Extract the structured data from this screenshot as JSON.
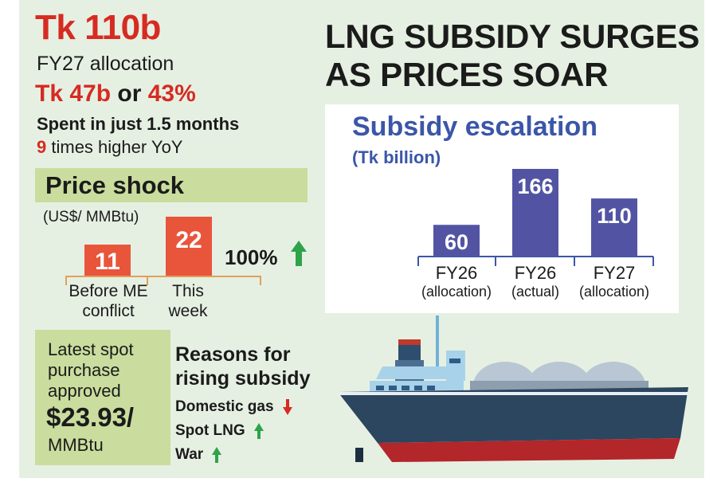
{
  "summary": {
    "headline_figure": "Tk 110b",
    "headline_label": "FY27 allocation",
    "spent_amount": "Tk 47b",
    "spent_connector": "or",
    "spent_percent": "43%",
    "spent_subtitle": "Spent in just 1.5 months",
    "yoy_multiplier": "9",
    "yoy_text": "times higher YoY"
  },
  "price_shock": {
    "title": "Price shock",
    "unit": "(US$/ MMBtu)",
    "bars": [
      {
        "label": "Before ME conflict",
        "value": 11,
        "display": "11"
      },
      {
        "label": "This week",
        "value": 22,
        "display": "22"
      }
    ],
    "change": "100%",
    "change_direction": "up",
    "colors": {
      "bar": "#e8553b",
      "axis": "#e0a05a",
      "arrow_up": "#2ea34a",
      "arrow_down": "#d62b22"
    }
  },
  "spot_purchase": {
    "label": "Latest spot purchase approved",
    "price": "$23.93/",
    "unit": "MMBtu"
  },
  "reasons": {
    "title": "Reasons for rising subsidy",
    "items": [
      {
        "label": "Domestic gas",
        "direction": "down"
      },
      {
        "label": "Spot LNG",
        "direction": "up"
      },
      {
        "label": "War",
        "direction": "up"
      }
    ]
  },
  "main_title": {
    "line1": "LNG SUBSIDY SURGES",
    "line2": "AS PRICES SOAR"
  },
  "illustration": {
    "icon": "lng-tanker-ship-icon"
  },
  "chart_data": {
    "type": "bar",
    "title": "Subsidy escalation",
    "unit_label": "(Tk billion)",
    "categories": [
      {
        "line1": "FY26",
        "line2": "(allocation)"
      },
      {
        "line1": "FY26",
        "line2": "(actual)"
      },
      {
        "line1": "FY27",
        "line2": "(allocation)"
      }
    ],
    "values": [
      60,
      166,
      110
    ],
    "ylim": [
      0,
      166
    ],
    "grid": false,
    "colors": {
      "bar": "#5254a3",
      "axis": "#3b56a8",
      "title": "#3b56a8"
    }
  }
}
